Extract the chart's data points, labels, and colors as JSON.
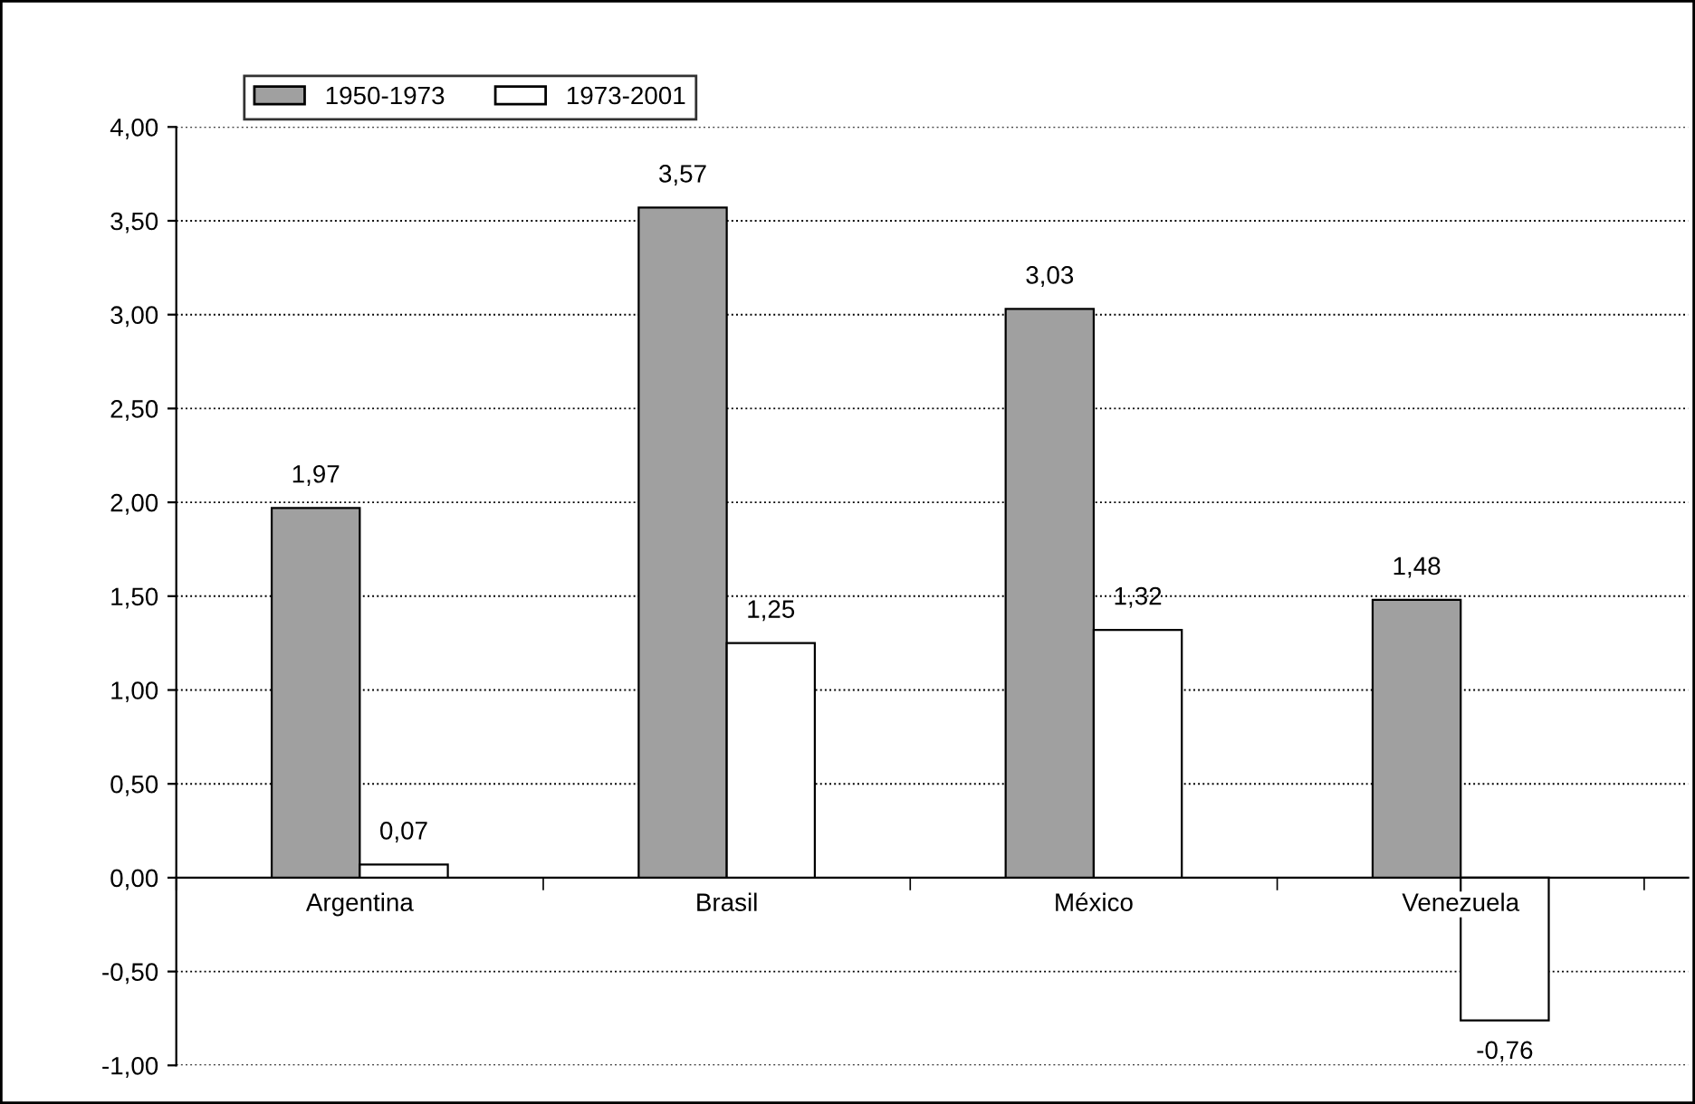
{
  "chart_data": {
    "type": "bar",
    "categories": [
      "Argentina",
      "Brasil",
      "México",
      "Venezuela"
    ],
    "series": [
      {
        "name": "1950-1973",
        "color": "#a0a0a0",
        "values": [
          1.97,
          3.57,
          3.03,
          1.48
        ],
        "value_labels": [
          "1,97",
          "3,57",
          "3,03",
          "1,48"
        ]
      },
      {
        "name": "1973-2001",
        "color": "#ffffff",
        "values": [
          0.07,
          1.25,
          1.32,
          -0.76
        ],
        "value_labels": [
          "0,07",
          "1,25",
          "1,32",
          "-0,76"
        ]
      }
    ],
    "ylim": [
      -1,
      4
    ],
    "yticks": [
      {
        "value": -1,
        "label": "-1,00"
      },
      {
        "value": -0.5,
        "label": "-0,50"
      },
      {
        "value": 0,
        "label": "0,00"
      },
      {
        "value": 0.5,
        "label": "0,50"
      },
      {
        "value": 1,
        "label": "1,00"
      },
      {
        "value": 1.5,
        "label": "1,50"
      },
      {
        "value": 2,
        "label": "2,00"
      },
      {
        "value": 2.5,
        "label": "2,50"
      },
      {
        "value": 3,
        "label": "3,00"
      },
      {
        "value": 3.5,
        "label": "3,50"
      },
      {
        "value": 4,
        "label": "4,00"
      }
    ],
    "grid": "y",
    "legend": "top left"
  }
}
